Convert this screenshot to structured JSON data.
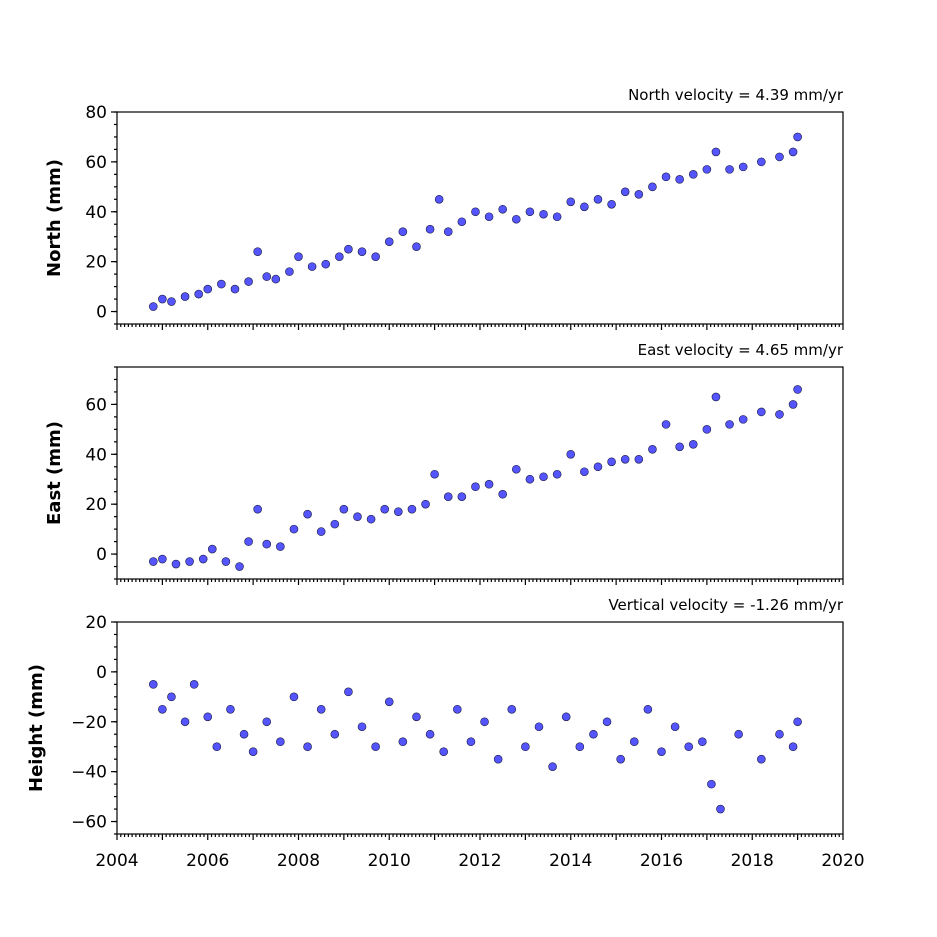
{
  "chart_data": {
    "type": "scatter",
    "x_axis": {
      "ticks": [
        2004,
        2006,
        2008,
        2010,
        2012,
        2014,
        2016,
        2018,
        2020
      ],
      "xlim": [
        2004,
        2020
      ]
    },
    "panels": [
      {
        "id": "north",
        "ylabel": "North (mm)",
        "velocity_label": "North velocity = 4.39 mm/yr",
        "ylim": [
          -5,
          80
        ],
        "yticks": [
          0,
          20,
          40,
          60,
          80
        ],
        "series": [
          {
            "color": "#5555ff",
            "x": [
              2004.8,
              2005.0,
              2005.2,
              2005.5,
              2005.8,
              2006.0,
              2006.3,
              2006.6,
              2006.9,
              2007.1,
              2007.3,
              2007.5,
              2007.8,
              2008.0,
              2008.3,
              2008.6,
              2008.9,
              2009.1,
              2009.4,
              2009.7,
              2010.0,
              2010.3,
              2010.6,
              2010.9,
              2011.1,
              2011.3,
              2011.6,
              2011.9,
              2012.2,
              2012.5,
              2012.8,
              2013.1,
              2013.4,
              2013.7,
              2014.0,
              2014.3,
              2014.6,
              2014.9,
              2015.2,
              2015.5,
              2015.8,
              2016.1,
              2016.4,
              2016.7,
              2017.0,
              2017.2,
              2017.5,
              2017.8,
              2018.2,
              2018.6,
              2018.9,
              2019.0
            ],
            "y": [
              2,
              5,
              4,
              6,
              7,
              9,
              11,
              9,
              12,
              24,
              14,
              13,
              16,
              22,
              18,
              19,
              22,
              25,
              24,
              22,
              28,
              32,
              26,
              33,
              45,
              32,
              36,
              40,
              38,
              41,
              37,
              40,
              39,
              38,
              44,
              42,
              45,
              43,
              48,
              47,
              50,
              54,
              53,
              55,
              57,
              64,
              57,
              58,
              60,
              62,
              64,
              70
            ]
          }
        ]
      },
      {
        "id": "east",
        "ylabel": "East (mm)",
        "velocity_label": "East velocity = 4.65 mm/yr",
        "ylim": [
          -10,
          75
        ],
        "yticks": [
          0,
          20,
          40,
          60
        ],
        "series": [
          {
            "color": "#5555ff",
            "x": [
              2004.8,
              2005.0,
              2005.3,
              2005.6,
              2005.9,
              2006.1,
              2006.4,
              2006.7,
              2006.9,
              2007.1,
              2007.3,
              2007.6,
              2007.9,
              2008.2,
              2008.5,
              2008.8,
              2009.0,
              2009.3,
              2009.6,
              2009.9,
              2010.2,
              2010.5,
              2010.8,
              2011.0,
              2011.3,
              2011.6,
              2011.9,
              2012.2,
              2012.5,
              2012.8,
              2013.1,
              2013.4,
              2013.7,
              2014.0,
              2014.3,
              2014.6,
              2014.9,
              2015.2,
              2015.5,
              2015.8,
              2016.1,
              2016.4,
              2016.7,
              2017.0,
              2017.2,
              2017.5,
              2017.8,
              2018.2,
              2018.6,
              2018.9,
              2019.0
            ],
            "y": [
              -3,
              -2,
              -4,
              -3,
              -2,
              2,
              -3,
              -5,
              5,
              18,
              4,
              3,
              10,
              16,
              9,
              12,
              18,
              15,
              14,
              18,
              17,
              18,
              20,
              32,
              23,
              23,
              27,
              28,
              24,
              34,
              30,
              31,
              32,
              40,
              33,
              35,
              37,
              38,
              38,
              42,
              52,
              43,
              44,
              50,
              63,
              52,
              54,
              57,
              56,
              60,
              66
            ]
          }
        ]
      },
      {
        "id": "height",
        "ylabel": "Height (mm)",
        "velocity_label": "Vertical velocity = -1.26 mm/yr",
        "ylim": [
          -65,
          20
        ],
        "yticks": [
          -60,
          -40,
          -20,
          0,
          20
        ],
        "series": [
          {
            "color": "#5555ff",
            "x": [
              2004.8,
              2005.0,
              2005.2,
              2005.5,
              2005.7,
              2006.0,
              2006.2,
              2006.5,
              2006.8,
              2007.0,
              2007.3,
              2007.6,
              2007.9,
              2008.2,
              2008.5,
              2008.8,
              2009.1,
              2009.4,
              2009.7,
              2010.0,
              2010.3,
              2010.6,
              2010.9,
              2011.2,
              2011.5,
              2011.8,
              2012.1,
              2012.4,
              2012.7,
              2013.0,
              2013.3,
              2013.6,
              2013.9,
              2014.2,
              2014.5,
              2014.8,
              2015.1,
              2015.4,
              2015.7,
              2016.0,
              2016.3,
              2016.6,
              2016.9,
              2017.1,
              2017.3,
              2017.7,
              2018.2,
              2018.6,
              2018.9,
              2019.0
            ],
            "y": [
              -5,
              -15,
              -10,
              -20,
              -5,
              -18,
              -30,
              -15,
              -25,
              -32,
              -20,
              -28,
              -10,
              -30,
              -15,
              -25,
              -8,
              -22,
              -30,
              -12,
              -28,
              -18,
              -25,
              -32,
              -15,
              -28,
              -20,
              -35,
              -15,
              -30,
              -22,
              -38,
              -18,
              -30,
              -25,
              -20,
              -35,
              -28,
              -15,
              -32,
              -22,
              -30,
              -28,
              -45,
              -55,
              -25,
              -35,
              -25,
              -30,
              -20
            ]
          }
        ]
      }
    ]
  }
}
